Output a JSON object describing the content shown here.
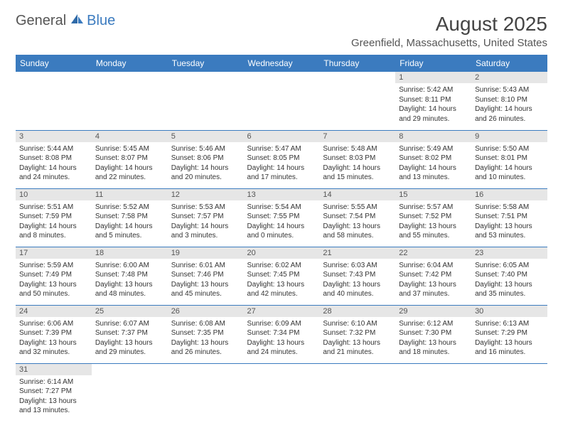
{
  "logo": {
    "part1": "General",
    "part2": "Blue"
  },
  "title": "August 2025",
  "location": "Greenfield, Massachusetts, United States",
  "colors": {
    "header_bg": "#3b7bbf",
    "header_fg": "#ffffff",
    "daynum_bg": "#e6e6e6",
    "row_divider": "#3b7bbf",
    "logo_accent": "#3b7bbf",
    "text": "#333333"
  },
  "calendar": {
    "type": "table",
    "columns": [
      "Sunday",
      "Monday",
      "Tuesday",
      "Wednesday",
      "Thursday",
      "Friday",
      "Saturday"
    ],
    "font_size_header": 12,
    "font_size_daynum": 11,
    "font_size_info": 10,
    "weeks": [
      [
        null,
        null,
        null,
        null,
        null,
        {
          "n": "1",
          "sunrise": "5:42 AM",
          "sunset": "8:11 PM",
          "dl": "14 hours and 29 minutes."
        },
        {
          "n": "2",
          "sunrise": "5:43 AM",
          "sunset": "8:10 PM",
          "dl": "14 hours and 26 minutes."
        }
      ],
      [
        {
          "n": "3",
          "sunrise": "5:44 AM",
          "sunset": "8:08 PM",
          "dl": "14 hours and 24 minutes."
        },
        {
          "n": "4",
          "sunrise": "5:45 AM",
          "sunset": "8:07 PM",
          "dl": "14 hours and 22 minutes."
        },
        {
          "n": "5",
          "sunrise": "5:46 AM",
          "sunset": "8:06 PM",
          "dl": "14 hours and 20 minutes."
        },
        {
          "n": "6",
          "sunrise": "5:47 AM",
          "sunset": "8:05 PM",
          "dl": "14 hours and 17 minutes."
        },
        {
          "n": "7",
          "sunrise": "5:48 AM",
          "sunset": "8:03 PM",
          "dl": "14 hours and 15 minutes."
        },
        {
          "n": "8",
          "sunrise": "5:49 AM",
          "sunset": "8:02 PM",
          "dl": "14 hours and 13 minutes."
        },
        {
          "n": "9",
          "sunrise": "5:50 AM",
          "sunset": "8:01 PM",
          "dl": "14 hours and 10 minutes."
        }
      ],
      [
        {
          "n": "10",
          "sunrise": "5:51 AM",
          "sunset": "7:59 PM",
          "dl": "14 hours and 8 minutes."
        },
        {
          "n": "11",
          "sunrise": "5:52 AM",
          "sunset": "7:58 PM",
          "dl": "14 hours and 5 minutes."
        },
        {
          "n": "12",
          "sunrise": "5:53 AM",
          "sunset": "7:57 PM",
          "dl": "14 hours and 3 minutes."
        },
        {
          "n": "13",
          "sunrise": "5:54 AM",
          "sunset": "7:55 PM",
          "dl": "14 hours and 0 minutes."
        },
        {
          "n": "14",
          "sunrise": "5:55 AM",
          "sunset": "7:54 PM",
          "dl": "13 hours and 58 minutes."
        },
        {
          "n": "15",
          "sunrise": "5:57 AM",
          "sunset": "7:52 PM",
          "dl": "13 hours and 55 minutes."
        },
        {
          "n": "16",
          "sunrise": "5:58 AM",
          "sunset": "7:51 PM",
          "dl": "13 hours and 53 minutes."
        }
      ],
      [
        {
          "n": "17",
          "sunrise": "5:59 AM",
          "sunset": "7:49 PM",
          "dl": "13 hours and 50 minutes."
        },
        {
          "n": "18",
          "sunrise": "6:00 AM",
          "sunset": "7:48 PM",
          "dl": "13 hours and 48 minutes."
        },
        {
          "n": "19",
          "sunrise": "6:01 AM",
          "sunset": "7:46 PM",
          "dl": "13 hours and 45 minutes."
        },
        {
          "n": "20",
          "sunrise": "6:02 AM",
          "sunset": "7:45 PM",
          "dl": "13 hours and 42 minutes."
        },
        {
          "n": "21",
          "sunrise": "6:03 AM",
          "sunset": "7:43 PM",
          "dl": "13 hours and 40 minutes."
        },
        {
          "n": "22",
          "sunrise": "6:04 AM",
          "sunset": "7:42 PM",
          "dl": "13 hours and 37 minutes."
        },
        {
          "n": "23",
          "sunrise": "6:05 AM",
          "sunset": "7:40 PM",
          "dl": "13 hours and 35 minutes."
        }
      ],
      [
        {
          "n": "24",
          "sunrise": "6:06 AM",
          "sunset": "7:39 PM",
          "dl": "13 hours and 32 minutes."
        },
        {
          "n": "25",
          "sunrise": "6:07 AM",
          "sunset": "7:37 PM",
          "dl": "13 hours and 29 minutes."
        },
        {
          "n": "26",
          "sunrise": "6:08 AM",
          "sunset": "7:35 PM",
          "dl": "13 hours and 26 minutes."
        },
        {
          "n": "27",
          "sunrise": "6:09 AM",
          "sunset": "7:34 PM",
          "dl": "13 hours and 24 minutes."
        },
        {
          "n": "28",
          "sunrise": "6:10 AM",
          "sunset": "7:32 PM",
          "dl": "13 hours and 21 minutes."
        },
        {
          "n": "29",
          "sunrise": "6:12 AM",
          "sunset": "7:30 PM",
          "dl": "13 hours and 18 minutes."
        },
        {
          "n": "30",
          "sunrise": "6:13 AM",
          "sunset": "7:29 PM",
          "dl": "13 hours and 16 minutes."
        }
      ],
      [
        {
          "n": "31",
          "sunrise": "6:14 AM",
          "sunset": "7:27 PM",
          "dl": "13 hours and 13 minutes."
        },
        null,
        null,
        null,
        null,
        null,
        null
      ]
    ]
  }
}
